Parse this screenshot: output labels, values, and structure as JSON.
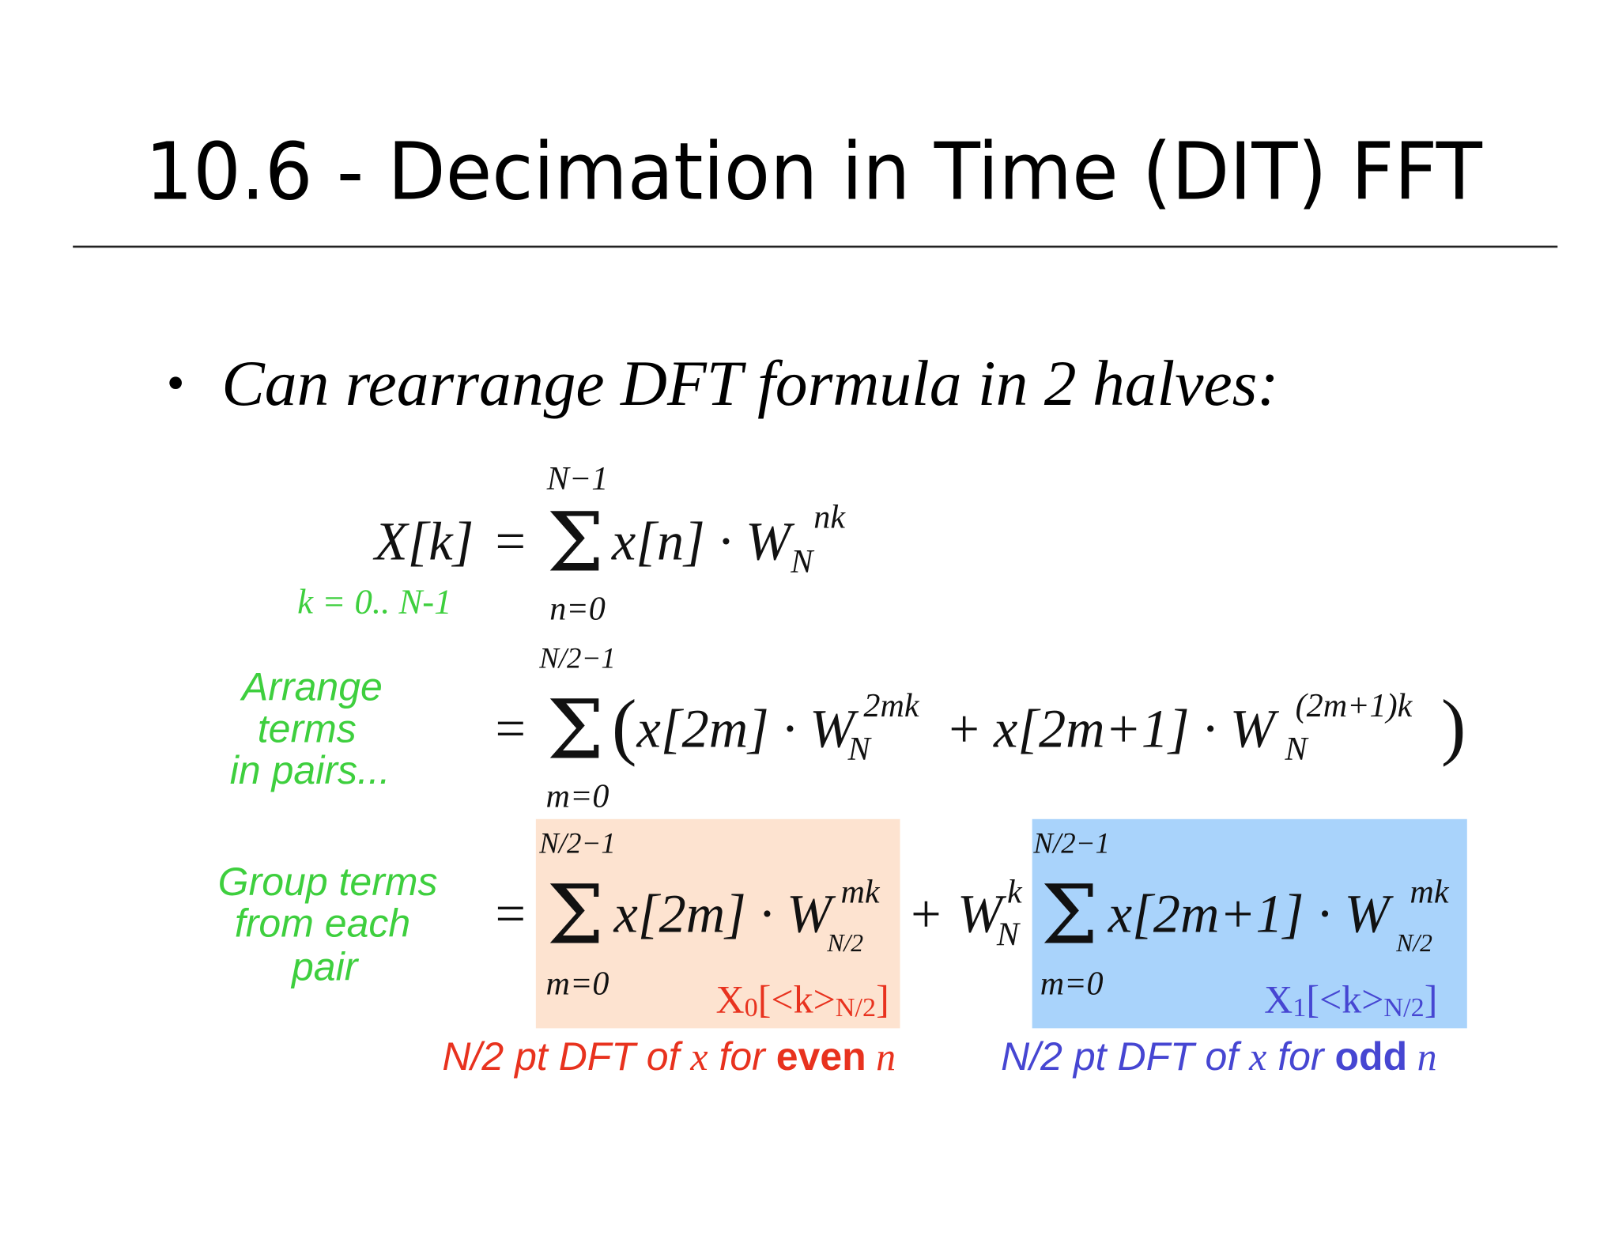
{
  "title": "10.6 - Decimation in Time (DIT) FFT",
  "bullet": "Can rearrange DFT formula in 2 halves:",
  "formula": {
    "line1": {
      "upper": "N−1",
      "lhs": "X[k]",
      "eq": "=",
      "sum": "Σ",
      "lower": "n=0",
      "term": "x[n] · W",
      "sup": "nk",
      "sub": "N",
      "range": "k = 0.. N-1"
    },
    "line2": {
      "upper": "N/2−1",
      "eq": "=",
      "sum": "Σ",
      "lower": "m=0",
      "open": "(",
      "term1": "x[2m] · W",
      "sup1": "2mk",
      "sub1": "N",
      "plus": "+",
      "term2": "x[2m+1] · W",
      "sup2": "(2m+1)k",
      "sub2": "N",
      "close": ")",
      "note": [
        "Arrange",
        "terms",
        "in pairs..."
      ]
    },
    "line3": {
      "eq": "=",
      "upper1": "N/2−1",
      "sum1": "Σ",
      "lower1": "m=0",
      "term1": "x[2m] · W",
      "sup1": "mk",
      "sub1": "N/2",
      "plus": "+ W",
      "sup_k": "k",
      "sub_k": "N",
      "upper2": "N/2−1",
      "sum2": "Σ",
      "lower2": "m=0",
      "term2": "x[2m+1] · W",
      "sup2": "mk",
      "sub2": "N/2",
      "note": [
        "Group terms",
        "from each",
        "pair"
      ],
      "label_even": [
        "X",
        "0",
        "[<k>",
        "N/2",
        "]"
      ],
      "label_odd": [
        "X",
        "1",
        "[<k>",
        "N/2",
        "]"
      ],
      "caption_even": [
        "N/2 pt DFT of ",
        "x",
        " for ",
        "even",
        " n"
      ],
      "caption_odd": [
        "N/2 pt DFT of ",
        "x",
        " for ",
        "odd",
        " n"
      ]
    }
  }
}
